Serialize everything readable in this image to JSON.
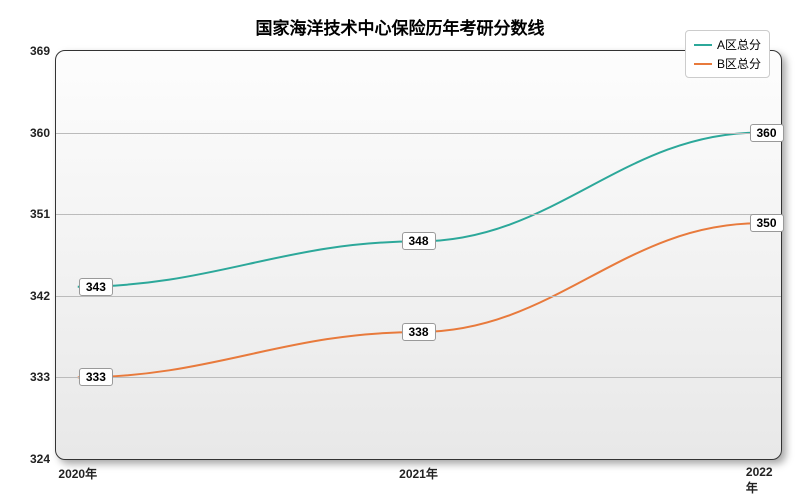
{
  "chart": {
    "type": "line",
    "title": "国家海洋技术中心保险历年考研分数线",
    "title_fontsize": 17,
    "title_color": "#000000",
    "background_gradient_top": "#fdfdfd",
    "background_gradient_bottom": "#e8e8e8",
    "border_color": "#333333",
    "border_radius": 10,
    "grid_color": "#bbbbbb",
    "tick_label_color": "#222222",
    "tick_fontsize": 12,
    "x": {
      "categories": [
        "2020年",
        "2021年",
        "2022年"
      ],
      "positions_pct": [
        3,
        50,
        97
      ]
    },
    "y": {
      "min": 324,
      "max": 369,
      "tick_step": 9,
      "ticks": [
        324,
        333,
        342,
        351,
        360,
        369
      ]
    },
    "series": [
      {
        "name": "A区总分",
        "color": "#2ca89a",
        "line_width": 2,
        "values": [
          343,
          348,
          360
        ],
        "labels": [
          "343",
          "348",
          "360"
        ]
      },
      {
        "name": "B区总分",
        "color": "#e87a3c",
        "line_width": 2,
        "values": [
          333,
          338,
          350
        ],
        "labels": [
          "333",
          "338",
          "350"
        ]
      }
    ],
    "legend": {
      "position": "top-right",
      "background": "#ffffff",
      "border_color": "#cccccc",
      "fontsize": 12
    },
    "data_label": {
      "background": "#ffffff",
      "border_color": "#999999",
      "fontsize": 12
    }
  }
}
